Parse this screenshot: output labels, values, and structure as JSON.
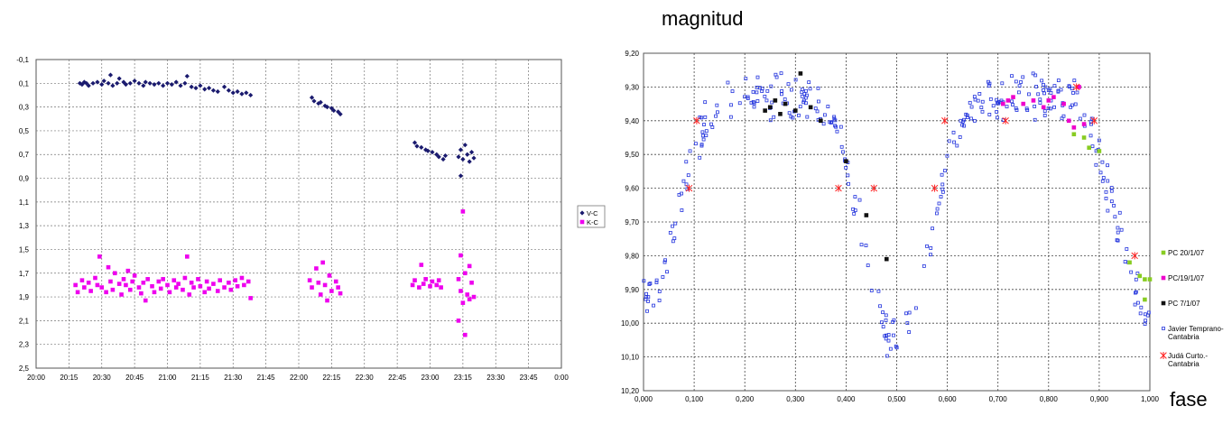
{
  "chart_data": [
    {
      "type": "scatter",
      "title": "",
      "xlabel": "",
      "ylabel": "",
      "y_reversed": true,
      "ylim": [
        -0.1,
        2.5
      ],
      "yticks": [
        "-0,1",
        "0,1",
        "0,3",
        "0,5",
        "0,7",
        "0,9",
        "1,1",
        "1,3",
        "1,5",
        "1,7",
        "1,9",
        "2,1",
        "2,3",
        "2,5"
      ],
      "xticks": [
        "20:00",
        "20:15",
        "20:30",
        "20:45",
        "21:00",
        "21:15",
        "21:30",
        "21:45",
        "22:00",
        "22:15",
        "22:30",
        "22:45",
        "23:00",
        "23:15",
        "23:30",
        "23:45",
        "0:00"
      ],
      "grid": true,
      "legend_position": "right",
      "series": [
        {
          "name": "V-C",
          "color": "#1a1a6e",
          "marker": "diamond",
          "points": [
            [
              "20:20",
              0.1
            ],
            [
              "20:21",
              0.11
            ],
            [
              "20:22",
              0.09
            ],
            [
              "20:23",
              0.1
            ],
            [
              "20:24",
              0.12
            ],
            [
              "20:26",
              0.1
            ],
            [
              "20:28",
              0.09
            ],
            [
              "20:30",
              0.11
            ],
            [
              "20:31",
              0.08
            ],
            [
              "20:33",
              0.1
            ],
            [
              "20:34",
              0.03
            ],
            [
              "20:35",
              0.12
            ],
            [
              "20:37",
              0.1
            ],
            [
              "20:38",
              0.06
            ],
            [
              "20:40",
              0.09
            ],
            [
              "20:41",
              0.11
            ],
            [
              "20:43",
              0.1
            ],
            [
              "20:45",
              0.08
            ],
            [
              "20:47",
              0.1
            ],
            [
              "20:49",
              0.12
            ],
            [
              "20:50",
              0.09
            ],
            [
              "20:52",
              0.1
            ],
            [
              "20:54",
              0.11
            ],
            [
              "20:56",
              0.1
            ],
            [
              "20:58",
              0.12
            ],
            [
              "21:00",
              0.1
            ],
            [
              "21:02",
              0.11
            ],
            [
              "21:04",
              0.09
            ],
            [
              "21:06",
              0.12
            ],
            [
              "21:08",
              0.1
            ],
            [
              "21:09",
              0.04
            ],
            [
              "21:11",
              0.13
            ],
            [
              "21:13",
              0.14
            ],
            [
              "21:15",
              0.12
            ],
            [
              "21:17",
              0.15
            ],
            [
              "21:19",
              0.14
            ],
            [
              "21:21",
              0.16
            ],
            [
              "21:23",
              0.17
            ],
            [
              "21:26",
              0.13
            ],
            [
              "21:28",
              0.16
            ],
            [
              "21:30",
              0.18
            ],
            [
              "21:32",
              0.17
            ],
            [
              "21:34",
              0.19
            ],
            [
              "21:36",
              0.18
            ],
            [
              "21:38",
              0.2
            ],
            [
              "22:06",
              0.22
            ],
            [
              "22:07",
              0.25
            ],
            [
              "22:09",
              0.27
            ],
            [
              "22:10",
              0.26
            ],
            [
              "22:12",
              0.29
            ],
            [
              "22:13",
              0.3
            ],
            [
              "22:15",
              0.31
            ],
            [
              "22:16",
              0.33
            ],
            [
              "22:18",
              0.34
            ],
            [
              "22:19",
              0.36
            ],
            [
              "22:53",
              0.6
            ],
            [
              "22:54",
              0.63
            ],
            [
              "22:56",
              0.64
            ],
            [
              "22:58",
              0.66
            ],
            [
              "22:59",
              0.67
            ],
            [
              "23:01",
              0.68
            ],
            [
              "23:03",
              0.7
            ],
            [
              "23:04",
              0.72
            ],
            [
              "23:06",
              0.74
            ],
            [
              "23:07",
              0.71
            ],
            [
              "23:13",
              0.72
            ],
            [
              "23:14",
              0.66
            ],
            [
              "23:14",
              0.88
            ],
            [
              "23:15",
              0.74
            ],
            [
              "23:16",
              0.62
            ],
            [
              "23:17",
              0.7
            ],
            [
              "23:18",
              0.76
            ],
            [
              "23:19",
              0.68
            ],
            [
              "23:20",
              0.73
            ]
          ]
        },
        {
          "name": "K-C",
          "color": "#ee00ee",
          "marker": "square",
          "points": [
            [
              "20:18",
              1.8
            ],
            [
              "20:19",
              1.86
            ],
            [
              "20:21",
              1.76
            ],
            [
              "20:22",
              1.82
            ],
            [
              "20:24",
              1.78
            ],
            [
              "20:25",
              1.85
            ],
            [
              "20:27",
              1.74
            ],
            [
              "20:28",
              1.8
            ],
            [
              "20:29",
              1.56
            ],
            [
              "20:30",
              1.82
            ],
            [
              "20:32",
              1.86
            ],
            [
              "20:33",
              1.65
            ],
            [
              "20:34",
              1.77
            ],
            [
              "20:35",
              1.84
            ],
            [
              "20:36",
              1.7
            ],
            [
              "20:38",
              1.79
            ],
            [
              "20:39",
              1.88
            ],
            [
              "20:40",
              1.75
            ],
            [
              "20:41",
              1.8
            ],
            [
              "20:42",
              1.68
            ],
            [
              "20:43",
              1.84
            ],
            [
              "20:44",
              1.77
            ],
            [
              "20:45",
              1.72
            ],
            [
              "20:47",
              1.82
            ],
            [
              "20:48",
              1.87
            ],
            [
              "20:49",
              1.78
            ],
            [
              "20:50",
              1.93
            ],
            [
              "20:51",
              1.75
            ],
            [
              "20:53",
              1.81
            ],
            [
              "20:54",
              1.86
            ],
            [
              "20:56",
              1.77
            ],
            [
              "20:57",
              1.83
            ],
            [
              "20:58",
              1.75
            ],
            [
              "21:00",
              1.8
            ],
            [
              "21:01",
              1.86
            ],
            [
              "21:03",
              1.76
            ],
            [
              "21:04",
              1.82
            ],
            [
              "21:05",
              1.79
            ],
            [
              "21:07",
              1.84
            ],
            [
              "21:08",
              1.74
            ],
            [
              "21:09",
              1.56
            ],
            [
              "21:10",
              1.88
            ],
            [
              "21:11",
              1.78
            ],
            [
              "21:12",
              1.82
            ],
            [
              "21:14",
              1.75
            ],
            [
              "21:15",
              1.81
            ],
            [
              "21:17",
              1.86
            ],
            [
              "21:18",
              1.77
            ],
            [
              "21:19",
              1.83
            ],
            [
              "21:21",
              1.79
            ],
            [
              "21:23",
              1.85
            ],
            [
              "21:24",
              1.76
            ],
            [
              "21:26",
              1.82
            ],
            [
              "21:28",
              1.78
            ],
            [
              "21:29",
              1.84
            ],
            [
              "21:31",
              1.76
            ],
            [
              "21:32",
              1.81
            ],
            [
              "21:34",
              1.74
            ],
            [
              "21:35",
              1.8
            ],
            [
              "21:37",
              1.77
            ],
            [
              "21:38",
              1.91
            ],
            [
              "22:05",
              1.76
            ],
            [
              "22:06",
              1.82
            ],
            [
              "22:08",
              1.66
            ],
            [
              "22:09",
              1.78
            ],
            [
              "22:10",
              1.88
            ],
            [
              "22:11",
              1.61
            ],
            [
              "22:12",
              1.8
            ],
            [
              "22:13",
              1.93
            ],
            [
              "22:14",
              1.72
            ],
            [
              "22:15",
              1.85
            ],
            [
              "22:17",
              1.77
            ],
            [
              "22:18",
              1.82
            ],
            [
              "22:19",
              1.87
            ],
            [
              "22:52",
              1.8
            ],
            [
              "22:53",
              1.76
            ],
            [
              "22:55",
              1.82
            ],
            [
              "22:56",
              1.63
            ],
            [
              "22:57",
              1.79
            ],
            [
              "22:58",
              1.75
            ],
            [
              "23:00",
              1.81
            ],
            [
              "23:01",
              1.77
            ],
            [
              "23:03",
              1.8
            ],
            [
              "23:04",
              1.76
            ],
            [
              "23:05",
              1.82
            ],
            [
              "23:13",
              1.75
            ],
            [
              "23:13",
              2.1
            ],
            [
              "23:14",
              1.55
            ],
            [
              "23:14",
              1.85
            ],
            [
              "23:15",
              1.18
            ],
            [
              "23:15",
              1.95
            ],
            [
              "23:16",
              2.22
            ],
            [
              "23:16",
              1.7
            ],
            [
              "23:17",
              1.88
            ],
            [
              "23:18",
              1.64
            ],
            [
              "23:18",
              1.92
            ],
            [
              "23:19",
              1.78
            ],
            [
              "23:20",
              1.9
            ]
          ]
        }
      ]
    },
    {
      "type": "scatter",
      "title": "",
      "xlabel": "fase",
      "ylabel": "magnitud",
      "y_reversed": true,
      "ylim": [
        9.2,
        10.2
      ],
      "xlim": [
        0,
        1
      ],
      "yticks": [
        "9,20",
        "9,30",
        "9,40",
        "9,50",
        "9,60",
        "9,70",
        "9,80",
        "9,90",
        "10,00",
        "10,10",
        "10,20"
      ],
      "xticks": [
        "0,000",
        "0,100",
        "0,200",
        "0,300",
        "0,400",
        "0,500",
        "0,600",
        "0,700",
        "0,800",
        "0,900",
        "1,000"
      ],
      "grid": true,
      "legend_position": "right",
      "series": [
        {
          "name": "PC 20/1/07",
          "color": "#88cc22",
          "marker": "square",
          "points": [
            [
              0.85,
              9.44
            ],
            [
              0.87,
              9.45
            ],
            [
              0.88,
              9.48
            ],
            [
              0.9,
              9.49
            ],
            [
              0.96,
              9.82
            ],
            [
              0.98,
              9.86
            ],
            [
              0.99,
              9.87
            ],
            [
              1.0,
              9.87
            ],
            [
              0.99,
              9.93
            ]
          ]
        },
        {
          "name": "PC/19/1/07",
          "color": "#ee00cc",
          "marker": "square",
          "points": [
            [
              0.71,
              9.35
            ],
            [
              0.72,
              9.34
            ],
            [
              0.73,
              9.33
            ],
            [
              0.75,
              9.35
            ],
            [
              0.77,
              9.34
            ],
            [
              0.79,
              9.36
            ],
            [
              0.8,
              9.34
            ],
            [
              0.81,
              9.33
            ],
            [
              0.83,
              9.35
            ],
            [
              0.84,
              9.4
            ],
            [
              0.85,
              9.42
            ],
            [
              0.86,
              9.3
            ],
            [
              0.87,
              9.41
            ]
          ]
        },
        {
          "name": "PC 7/1/07",
          "color": "#111111",
          "marker": "square",
          "points": [
            [
              0.24,
              9.37
            ],
            [
              0.25,
              9.36
            ],
            [
              0.26,
              9.34
            ],
            [
              0.27,
              9.38
            ],
            [
              0.28,
              9.35
            ],
            [
              0.3,
              9.37
            ],
            [
              0.31,
              9.26
            ],
            [
              0.33,
              9.36
            ],
            [
              0.35,
              9.4
            ],
            [
              0.4,
              9.52
            ],
            [
              0.44,
              9.68
            ],
            [
              0.48,
              9.81
            ]
          ]
        },
        {
          "name": "Javier Temprano-\nCantabria",
          "color": "#2233dd",
          "marker": "open-square",
          "generated": "light curve, approx. 330 points: maxima 9,30 near 0,25 and 0,75; minima 9,95 near 0 and 10,10 near 0,5"
        },
        {
          "name": "Judá Curto.-\nCantabria",
          "color": "#ff2222",
          "marker": "asterisk",
          "points": [
            [
              0.09,
              9.6
            ],
            [
              0.105,
              9.4
            ],
            [
              0.385,
              9.6
            ],
            [
              0.455,
              9.6
            ],
            [
              0.575,
              9.6
            ],
            [
              0.595,
              9.4
            ],
            [
              0.715,
              9.4
            ],
            [
              0.855,
              9.3
            ],
            [
              0.89,
              9.4
            ],
            [
              0.97,
              9.8
            ]
          ]
        }
      ]
    }
  ]
}
